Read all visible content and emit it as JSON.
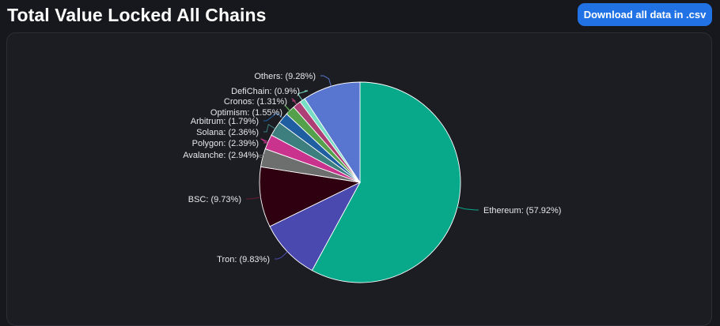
{
  "header": {
    "title": "Total Value Locked All Chains",
    "download_label": "Download all data in .csv"
  },
  "chart_data": {
    "type": "pie",
    "title": "Total Value Locked All Chains",
    "slices": [
      {
        "name": "Ethereum",
        "label": "Ethereum: (57.92%)",
        "value": 57.92,
        "color": "#08a88a"
      },
      {
        "name": "Tron",
        "label": "Tron: (9.83%)",
        "value": 9.83,
        "color": "#4a49b0"
      },
      {
        "name": "BSC",
        "label": "BSC: (9.73%)",
        "value": 9.73,
        "color": "#2e0010"
      },
      {
        "name": "Avalanche",
        "label": "Avalanche: (2.94%)",
        "value": 2.94,
        "color": "#6d6e6e"
      },
      {
        "name": "Polygon",
        "label": "Polygon: (2.39%)",
        "value": 2.39,
        "color": "#c9338e"
      },
      {
        "name": "Solana",
        "label": "Solana: (2.36%)",
        "value": 2.36,
        "color": "#3d7f7f"
      },
      {
        "name": "Arbitrum",
        "label": "Arbitrum: (1.79%)",
        "value": 1.79,
        "color": "#1f5fa1"
      },
      {
        "name": "Optimism",
        "label": "Optimism: (1.55%)",
        "value": 1.55,
        "color": "#55a04b"
      },
      {
        "name": "Cronos",
        "label": "Cronos: (1.31%)",
        "value": 1.31,
        "color": "#ae3f76"
      },
      {
        "name": "DefiChain",
        "label": "DefiChain: (0.9%)",
        "value": 0.9,
        "color": "#79dcc4"
      },
      {
        "name": "Others",
        "label": "Others: (9.28%)",
        "value": 9.28,
        "color": "#5876cf"
      }
    ],
    "legend": "none"
  }
}
